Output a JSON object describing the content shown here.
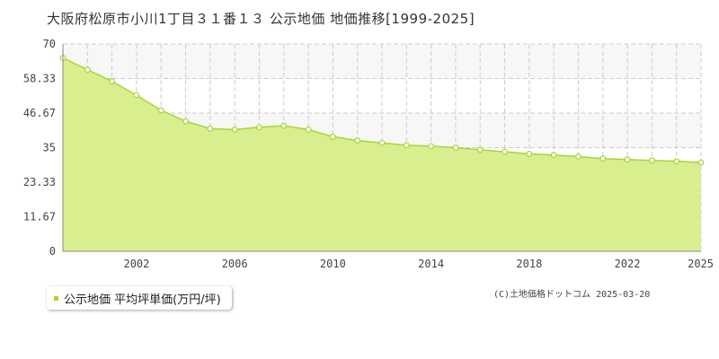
{
  "title": "大阪府松原市小川1丁目３１番１３ 公示地価 地価推移[1999-2025]",
  "legend": {
    "label": "公示地価 平均坪単価(万円/坪)"
  },
  "copyright": "(C)土地価格ドットコム 2025-03-20",
  "colors": {
    "area_fill": "#d9ee8e",
    "line": "#a8d536",
    "plot_bg": "#ffffff",
    "band": "#f7f7f7",
    "grid": "#cccccc"
  },
  "chart_data": {
    "type": "area",
    "title": "大阪府松原市小川1丁目３１番１３ 公示地価 地価推移[1999-2025]",
    "xlabel": "",
    "ylabel": "",
    "xlim": [
      1999,
      2025
    ],
    "ylim": [
      0,
      70
    ],
    "x_ticks": [
      "2002",
      "2006",
      "2010",
      "2014",
      "2018",
      "2022",
      "2025"
    ],
    "y_ticks": [
      "0",
      "11.67",
      "23.33",
      "35",
      "46.67",
      "58.33",
      "70"
    ],
    "grid": true,
    "series": [
      {
        "name": "公示地価 平均坪単価(万円/坪)",
        "x": [
          1999,
          2000,
          2001,
          2002,
          2003,
          2004,
          2005,
          2006,
          2007,
          2008,
          2009,
          2010,
          2011,
          2012,
          2013,
          2014,
          2015,
          2016,
          2017,
          2018,
          2019,
          2020,
          2021,
          2022,
          2023,
          2024,
          2025
        ],
        "values": [
          65.3,
          61.3,
          57.4,
          52.7,
          47.6,
          43.9,
          41.4,
          41.1,
          41.9,
          42.4,
          41.1,
          38.7,
          37.4,
          36.6,
          35.8,
          35.5,
          35.0,
          34.3,
          33.6,
          32.9,
          32.5,
          32.0,
          31.3,
          31.0,
          30.7,
          30.4,
          30.0
        ]
      }
    ]
  }
}
